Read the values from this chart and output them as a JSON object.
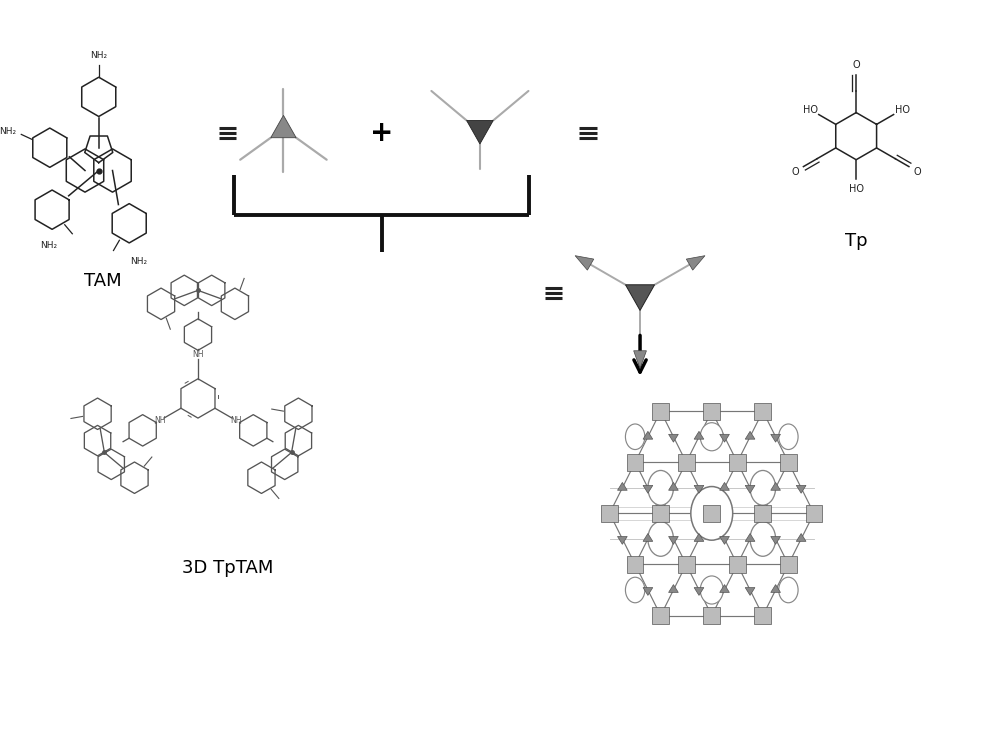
{
  "bg_color": "#ffffff",
  "TAM_label": "TAM",
  "Tp_label": "Tp",
  "product_label": "3D TpTAM",
  "equals_lw": 2.2,
  "bracket_lw": 2.8,
  "text_color": "#000000",
  "label_fontsize": 13,
  "node_gray": "#999999",
  "node_dark": "#444444",
  "node_light": "#bbbbbb",
  "line_gray": "#777777",
  "frame_lw": 0.9
}
